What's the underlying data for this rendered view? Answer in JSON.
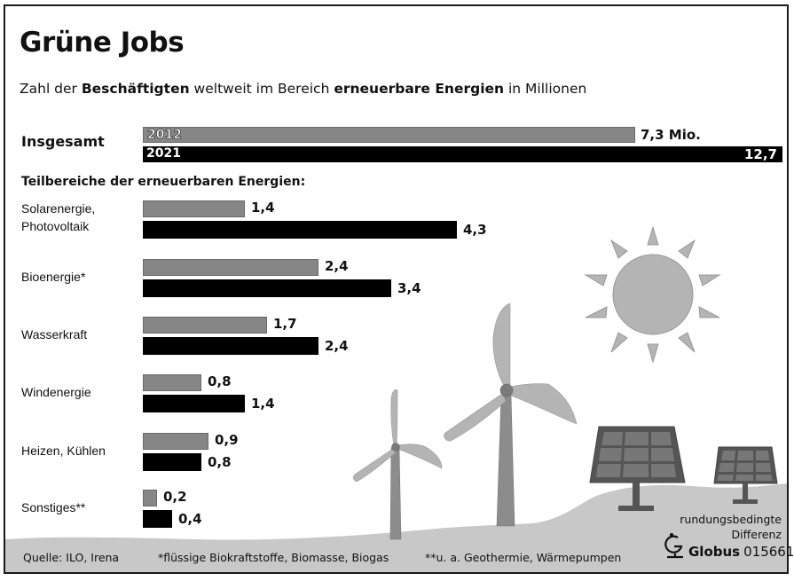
{
  "header": {
    "title": "Grüne Jobs",
    "subtitle_parts": [
      "Zahl der ",
      "Beschäftigten",
      " weltweit im Bereich ",
      "erneuerbare Energien",
      " in Millionen"
    ]
  },
  "total": {
    "label": "Insgesamt",
    "year_2012": "2012",
    "year_2021": "2021",
    "value_2012": "7,3 Mio.",
    "value_2021": "12,7"
  },
  "section_heading": "Teilbereiche der erneuerbaren Energien:",
  "categories": [
    {
      "label_line1": "Solarenergie,",
      "label_line2": "Photovoltaik",
      "v2012": "1,4",
      "v2021": "4,3"
    },
    {
      "label_line1": "Bioenergie*",
      "label_line2": "",
      "v2012": "2,4",
      "v2021": "3,4"
    },
    {
      "label_line1": "Wasserkraft",
      "label_line2": "",
      "v2012": "1,7",
      "v2021": "2,4"
    },
    {
      "label_line1": "Windenergie",
      "label_line2": "",
      "v2012": "0,8",
      "v2021": "1,4"
    },
    {
      "label_line1": "Heizen, Kühlen",
      "label_line2": "",
      "v2012": "0,9",
      "v2021": "0,8"
    },
    {
      "label_line1": "Sonstiges**",
      "label_line2": "",
      "v2012": "0,2",
      "v2021": "0,4"
    }
  ],
  "footer": {
    "source": "Quelle: ILO, Irena",
    "note_bio": "*flüssige Biokraftstoffe, Biomasse, Biogas",
    "note_other": "**u. a. Geothermie, Wärmepumpen",
    "rounding_line1": "rundungsbedingte",
    "rounding_line2": "Differenz",
    "brand": "Globus",
    "graphic_id": "015661"
  },
  "colors": {
    "bar_2012": "#868686",
    "bar_2021": "#000000",
    "illustration_light": "#b4b4b4",
    "illustration_mid": "#8c8c8c",
    "illustration_dark": "#555555",
    "ground": "#c8c8c8"
  },
  "chart_data": {
    "type": "bar",
    "orientation": "horizontal",
    "title": "Grüne Jobs",
    "subtitle": "Zahl der Beschäftigten weltweit im Bereich erneuerbare Energien in Millionen",
    "unit": "Millionen",
    "total": {
      "label": "Insgesamt",
      "2012": 7.3,
      "2021": 12.7
    },
    "categories": [
      "Solarenergie, Photovoltaik",
      "Bioenergie*",
      "Wasserkraft",
      "Windenergie",
      "Heizen, Kühlen",
      "Sonstiges**"
    ],
    "series": [
      {
        "name": "2012",
        "color": "#868686",
        "values": [
          1.4,
          2.4,
          1.7,
          0.8,
          0.9,
          0.2
        ]
      },
      {
        "name": "2021",
        "color": "#000000",
        "values": [
          4.3,
          3.4,
          2.4,
          1.4,
          0.8,
          0.4
        ]
      }
    ],
    "xlabel": "",
    "ylabel": "",
    "grid": false,
    "legend": "inline year labels inside total bars",
    "annotations": [
      "Teilbereiche der erneuerbaren Energien:",
      "*flüssige Biokraftstoffe, Biomasse, Biogas",
      "**u. a. Geothermie, Wärmepumpen",
      "rundungsbedingte Differenz",
      "Quelle: ILO, Irena",
      "Globus 015661"
    ]
  }
}
